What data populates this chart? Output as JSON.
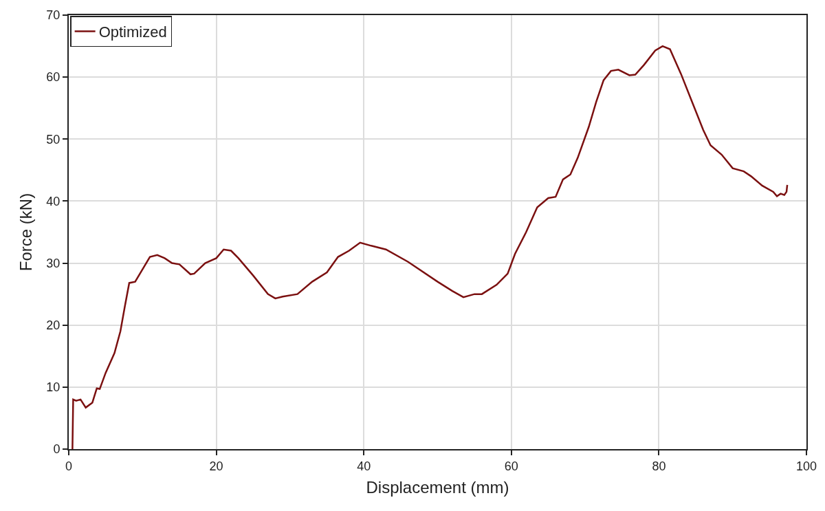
{
  "chart_data": {
    "type": "line",
    "xlabel": "Displacement (mm)",
    "ylabel": "Force (kN)",
    "series": [
      {
        "name": "Optimized",
        "color": "#7b1010",
        "x": [
          0.5,
          0.6,
          1,
          1.6,
          2.3,
          3.2,
          3.8,
          4.2,
          5,
          6.2,
          7,
          7.6,
          8.2,
          9,
          10,
          11,
          12,
          13,
          14,
          15,
          16.5,
          17,
          18.5,
          20,
          21,
          22,
          23,
          25,
          27,
          28,
          29,
          31,
          33,
          35,
          36.5,
          38,
          39.5,
          41,
          43,
          46,
          50,
          52,
          53.5,
          55,
          56,
          58,
          59.5,
          60.5,
          62,
          63.5,
          65,
          66,
          67,
          68,
          69,
          70.5,
          71.5,
          72.5,
          73.5,
          74.5,
          76,
          76.8,
          78,
          79.5,
          80.5,
          81.5,
          83,
          84.5,
          86,
          87,
          88.5,
          90,
          91.5,
          92.5,
          94,
          95.5,
          96,
          96.5,
          97,
          97.3,
          97.4
        ],
        "values": [
          0,
          8,
          7.8,
          8,
          6.7,
          7.5,
          9.8,
          9.7,
          12.3,
          15.5,
          19,
          23,
          26.8,
          27,
          29,
          31,
          31.3,
          30.8,
          30,
          29.8,
          28.2,
          28.3,
          30,
          30.8,
          32.2,
          32,
          30.8,
          28,
          25,
          24.3,
          24.6,
          25,
          27,
          28.5,
          31,
          32,
          33.3,
          32.8,
          32.2,
          30.2,
          27,
          25.5,
          24.5,
          25,
          25,
          26.5,
          28.3,
          31.5,
          35,
          39,
          40.5,
          40.7,
          43.5,
          44.3,
          47,
          52,
          56,
          59.5,
          61,
          61.2,
          60.3,
          60.4,
          62,
          64.3,
          65,
          64.5,
          60.5,
          56,
          51.5,
          49,
          47.5,
          45.3,
          44.8,
          44,
          42.5,
          41.5,
          40.8,
          41.2,
          41,
          41.5,
          42.6
        ]
      }
    ],
    "xlim": [
      0,
      100
    ],
    "xticks": [
      0,
      20,
      40,
      60,
      80,
      100
    ],
    "ylim": [
      0,
      70
    ],
    "yticks": [
      0,
      10,
      20,
      30,
      40,
      50,
      60,
      70
    ],
    "grid": true,
    "legend": "top left",
    "marker": "none",
    "line_style": "solid"
  }
}
